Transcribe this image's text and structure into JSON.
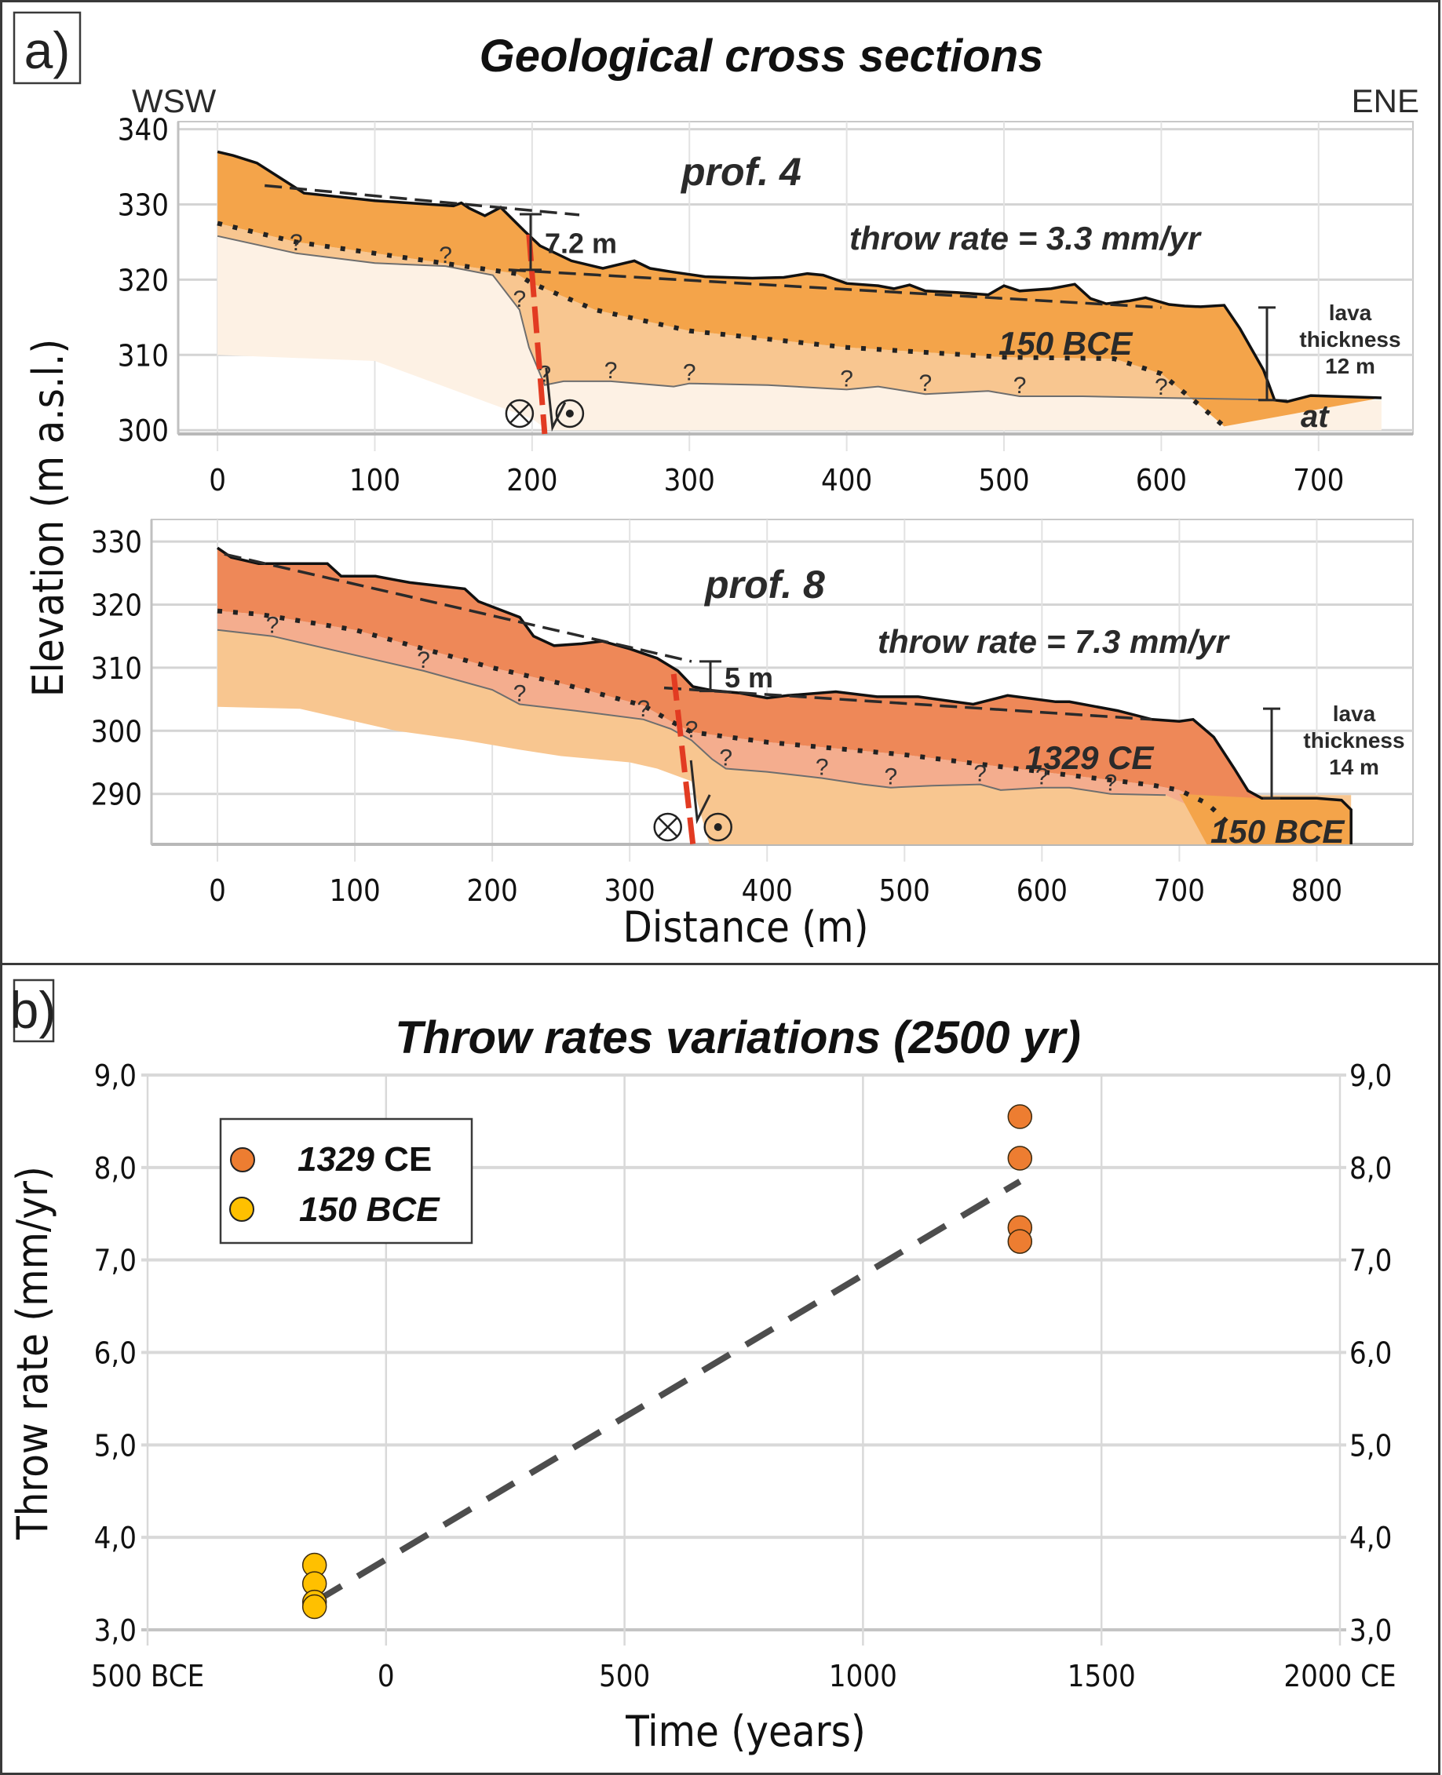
{
  "panel_a": {
    "label": "a)",
    "title": "Geological cross sections",
    "dir_left": "WSW",
    "dir_right": "ENE",
    "ylabel": "Elevation (m a.s.l.)",
    "xlabel": "Distance (m)"
  },
  "panel_b": {
    "label": "b)",
    "title": "Throw rates variations (2500 yr)"
  },
  "colors": {
    "lava_150bce": "#f4a44a",
    "lava_1329ce": "#ee8858",
    "lava_1329ce_light": "#f4ad8e",
    "substrate_150bce_light": "#f8c690",
    "substrate_at": "#fdf1e4",
    "fault": "#e23b22",
    "point_1329": "#ed7d31",
    "point_150": "#ffc000",
    "trend": "#4d4d4d",
    "grid": "#d9d9d9"
  },
  "chart_data": [
    {
      "type": "area",
      "name": "prof. 4",
      "title": "prof. 4",
      "annotation_rate": "throw rate = 3.3 mm/yr",
      "throw_label": "7.2 m",
      "throw_m": 7.2,
      "throw_rate_mm_yr": 3.3,
      "unit_label": "150 BCE",
      "substrate_label": "at",
      "lava_thickness_label": [
        "lava",
        "thickness",
        "12 m"
      ],
      "lava_thickness_m": 12,
      "xlabel": "Distance (m)",
      "ylabel": "Elevation (m a.s.l.)",
      "xlim": [
        -25,
        760
      ],
      "ylim": [
        299.5,
        341
      ],
      "xticks": [
        0,
        100,
        200,
        300,
        400,
        500,
        600,
        700
      ],
      "yticks": [
        300,
        310,
        320,
        330,
        340
      ],
      "fault_x": [
        198,
        208
      ],
      "fault_y": [
        326,
        299.5
      ],
      "surface": [
        [
          0,
          337
        ],
        [
          10,
          336.5
        ],
        [
          25,
          335.5
        ],
        [
          40,
          333.5
        ],
        [
          55,
          331.5
        ],
        [
          100,
          330.5
        ],
        [
          150,
          329.8
        ],
        [
          155,
          330.2
        ],
        [
          160,
          329.5
        ],
        [
          170,
          328.5
        ],
        [
          180,
          329.6
        ],
        [
          195,
          326.5
        ],
        [
          205,
          324.5
        ],
        [
          225,
          322.5
        ],
        [
          245,
          321.5
        ],
        [
          265,
          322.5
        ],
        [
          275,
          321.5
        ],
        [
          290,
          321
        ],
        [
          310,
          320.4
        ],
        [
          340,
          320.2
        ],
        [
          360,
          320.3
        ],
        [
          375,
          320.8
        ],
        [
          385,
          320.6
        ],
        [
          400,
          319.5
        ],
        [
          420,
          319.2
        ],
        [
          430,
          318.8
        ],
        [
          440,
          319.3
        ],
        [
          450,
          318.5
        ],
        [
          470,
          318.3
        ],
        [
          490,
          318
        ],
        [
          500,
          319.2
        ],
        [
          510,
          318.5
        ],
        [
          530,
          318.8
        ],
        [
          545,
          319.4
        ],
        [
          555,
          317.5
        ],
        [
          565,
          316.8
        ],
        [
          580,
          317.2
        ],
        [
          590,
          317.6
        ],
        [
          605,
          316.7
        ],
        [
          615,
          316.5
        ],
        [
          625,
          316.4
        ],
        [
          640,
          316.6
        ],
        [
          650,
          313.5
        ],
        [
          665,
          308
        ],
        [
          672,
          304
        ],
        [
          680,
          303.8
        ],
        [
          695,
          304.6
        ],
        [
          740,
          304.3
        ]
      ],
      "scarp_fit_upper": [
        [
          30,
          332.5
        ],
        [
          230,
          328.6
        ]
      ],
      "scarp_fit_lower": [
        [
          185,
          321.3
        ],
        [
          600,
          316.3
        ]
      ],
      "base_150bce_dotted": [
        [
          0,
          327.5
        ],
        [
          50,
          325
        ],
        [
          100,
          323.5
        ],
        [
          150,
          322
        ],
        [
          190,
          320.8
        ],
        [
          200,
          319.5
        ],
        [
          240,
          316
        ],
        [
          300,
          313.2
        ],
        [
          400,
          311
        ],
        [
          500,
          309.7
        ],
        [
          570,
          309.5
        ],
        [
          600,
          307.5
        ],
        [
          625,
          303.2
        ],
        [
          640,
          300.5
        ]
      ],
      "contact_thin": [
        [
          0,
          325.8
        ],
        [
          50,
          323.5
        ],
        [
          100,
          322.2
        ],
        [
          145,
          321.8
        ],
        [
          175,
          320.6
        ],
        [
          192,
          316
        ],
        [
          198,
          311
        ],
        [
          208,
          306
        ],
        [
          220,
          306.5
        ],
        [
          250,
          306.5
        ],
        [
          290,
          305.8
        ],
        [
          300,
          306.2
        ],
        [
          350,
          306
        ],
        [
          400,
          305.4
        ],
        [
          420,
          305.8
        ],
        [
          450,
          304.8
        ],
        [
          490,
          305.2
        ],
        [
          510,
          304.5
        ],
        [
          550,
          304.5
        ],
        [
          600,
          304.3
        ],
        [
          680,
          304
        ]
      ],
      "substrate_lower": [
        [
          0,
          310
        ],
        [
          100,
          309.2
        ],
        [
          200,
          301.5
        ],
        [
          210,
          300
        ],
        [
          740,
          300
        ]
      ]
    },
    {
      "type": "area",
      "name": "prof. 8",
      "title": "prof. 8",
      "annotation_rate": "throw rate = 7.3 mm/yr",
      "throw_label": "5 m",
      "throw_m": 5,
      "throw_rate_mm_yr": 7.3,
      "unit_label": "1329 CE",
      "lower_unit_label": "150 BCE",
      "lava_thickness_label": [
        "lava",
        "thickness",
        "14 m"
      ],
      "lava_thickness_m": 14,
      "xlabel": "Distance (m)",
      "ylabel": "Elevation (m a.s.l.)",
      "xlim": [
        -48,
        870
      ],
      "ylim": [
        282,
        333.5
      ],
      "xticks": [
        0,
        100,
        200,
        300,
        400,
        500,
        600,
        700,
        800
      ],
      "yticks": [
        290,
        300,
        310,
        320,
        330
      ],
      "fault_x": [
        332,
        346
      ],
      "fault_y": [
        309,
        282
      ],
      "surface": [
        [
          0,
          329
        ],
        [
          10,
          327.5
        ],
        [
          30,
          326.5
        ],
        [
          80,
          326.5
        ],
        [
          90,
          324.5
        ],
        [
          115,
          324.5
        ],
        [
          140,
          323.5
        ],
        [
          160,
          323
        ],
        [
          180,
          322.5
        ],
        [
          190,
          320.5
        ],
        [
          220,
          318
        ],
        [
          230,
          315
        ],
        [
          245,
          313.5
        ],
        [
          265,
          313.8
        ],
        [
          280,
          314.2
        ],
        [
          300,
          313
        ],
        [
          320,
          311.5
        ],
        [
          335,
          309.5
        ],
        [
          346,
          307
        ],
        [
          360,
          306.4
        ],
        [
          380,
          306
        ],
        [
          400,
          305.2
        ],
        [
          415,
          305.6
        ],
        [
          450,
          306.2
        ],
        [
          480,
          305.4
        ],
        [
          510,
          305.4
        ],
        [
          550,
          304.2
        ],
        [
          575,
          305.6
        ],
        [
          610,
          304.6
        ],
        [
          620,
          304.6
        ],
        [
          655,
          303.2
        ],
        [
          680,
          301.8
        ],
        [
          700,
          301.5
        ],
        [
          710,
          301.8
        ],
        [
          725,
          299
        ],
        [
          740,
          294
        ],
        [
          750,
          290.5
        ],
        [
          760,
          289.3
        ],
        [
          800,
          289.3
        ],
        [
          818,
          289
        ],
        [
          825,
          287.5
        ],
        [
          825,
          282
        ]
      ],
      "scarp_fit_upper": [
        [
          5,
          328
        ],
        [
          345,
          311
        ]
      ],
      "scarp_fit_lower": [
        [
          325,
          306.8
        ],
        [
          680,
          301.8
        ]
      ],
      "base_1329ce_dotted": [
        [
          0,
          319
        ],
        [
          30,
          318.5
        ],
        [
          100,
          316
        ],
        [
          150,
          313
        ],
        [
          200,
          310
        ],
        [
          250,
          307.5
        ],
        [
          310,
          304
        ],
        [
          330,
          301.5
        ],
        [
          345,
          299.8
        ],
        [
          400,
          298.2
        ],
        [
          500,
          296.2
        ],
        [
          600,
          293.5
        ],
        [
          680,
          291.4
        ],
        [
          700,
          290.6
        ],
        [
          720,
          288.5
        ],
        [
          735,
          285.5
        ]
      ],
      "contact_thin": [
        [
          0,
          316
        ],
        [
          40,
          315
        ],
        [
          100,
          312
        ],
        [
          150,
          309.5
        ],
        [
          200,
          306.5
        ],
        [
          220,
          304.2
        ],
        [
          260,
          303.2
        ],
        [
          310,
          301.8
        ],
        [
          330,
          300.3
        ],
        [
          345,
          298.5
        ],
        [
          360,
          295.5
        ],
        [
          370,
          294
        ],
        [
          400,
          293.5
        ],
        [
          440,
          292.5
        ],
        [
          470,
          291.5
        ],
        [
          490,
          291
        ],
        [
          520,
          291.3
        ],
        [
          555,
          291.5
        ],
        [
          570,
          290.6
        ],
        [
          600,
          291
        ],
        [
          620,
          291
        ],
        [
          650,
          290
        ],
        [
          690,
          289.8
        ]
      ],
      "substrate_lower": [
        [
          0,
          303.8
        ],
        [
          60,
          303.5
        ],
        [
          100,
          301.5
        ],
        [
          130,
          300
        ],
        [
          180,
          298.5
        ],
        [
          220,
          297
        ],
        [
          250,
          296
        ],
        [
          300,
          295
        ],
        [
          320,
          294
        ],
        [
          345,
          292
        ],
        [
          358,
          282
        ],
        [
          825,
          282
        ]
      ],
      "lower_150bce_wedge": [
        [
          700,
          290
        ],
        [
          760,
          289.3
        ],
        [
          818,
          289
        ],
        [
          825,
          287.5
        ],
        [
          825,
          282
        ],
        [
          720,
          282
        ]
      ]
    },
    {
      "type": "scatter",
      "title": "Throw rates variations (2500 yr)",
      "xlabel": "Time (years)",
      "ylabel": "Throw rate (mm/yr)",
      "xlim": [
        -500,
        2000
      ],
      "ylim": [
        3.0,
        9.0
      ],
      "xticks": [
        -500,
        0,
        500,
        1000,
        1500,
        2000
      ],
      "xtick_labels": [
        "500 BCE",
        "0",
        "500",
        "1000",
        "1500",
        "2000 CE"
      ],
      "yticks": [
        3.0,
        4.0,
        5.0,
        6.0,
        7.0,
        8.0,
        9.0
      ],
      "ytick_labels": [
        "3,0",
        "4,0",
        "5,0",
        "6,0",
        "7,0",
        "8,0",
        "9,0"
      ],
      "secondary_y_axis": true,
      "grid": true,
      "legend_position": "top-left",
      "series": [
        {
          "name": "1329 CE",
          "name_italic": "1329",
          "name_rest": " CE",
          "x": [
            1329,
            1329,
            1329,
            1329
          ],
          "y": [
            8.55,
            8.1,
            7.35,
            7.2
          ]
        },
        {
          "name": "150 BCE",
          "x": [
            -150,
            -150,
            -150,
            -150
          ],
          "y": [
            3.7,
            3.5,
            3.3,
            3.25
          ]
        }
      ],
      "trendline": {
        "x": [
          -150,
          1329
        ],
        "y": [
          3.3,
          7.85
        ],
        "style": "dashed"
      }
    }
  ]
}
